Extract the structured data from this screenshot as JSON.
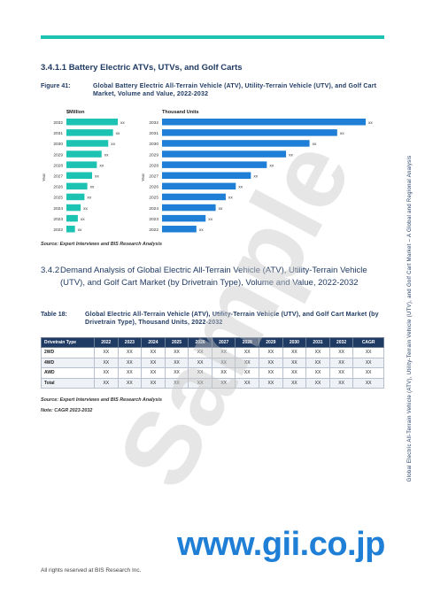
{
  "section": {
    "heading": "3.4.1.1 Battery Electric ATVs, UTVs, and Golf Carts"
  },
  "figure": {
    "label": "Figure 41:",
    "caption": "Global Battery Electric All-Terrain Vehicle (ATV), Utility-Terrain Vehicle (UTV), and Golf Cart Market, Volume and Value, 2022-2032"
  },
  "chart_data": [
    {
      "type": "bar",
      "orientation": "horizontal",
      "title": "$Million",
      "ylabel": "Year",
      "color": "#1cc3b2",
      "categories": [
        "2032",
        "2031",
        "2030",
        "2029",
        "2028",
        "2027",
        "2026",
        "2025",
        "2024",
        "2023",
        "2022"
      ],
      "values": [
        54,
        49,
        44,
        37,
        32,
        27,
        22,
        19,
        15,
        12,
        9
      ],
      "data_labels": [
        "xx",
        "xx",
        "xx",
        "xx",
        "xx",
        "xx",
        "xx",
        "xx",
        "xx",
        "xx",
        "xx"
      ]
    },
    {
      "type": "bar",
      "orientation": "horizontal",
      "title": "Thousand Units",
      "ylabel": "Year",
      "color": "#1f7fd6",
      "categories": [
        "2032",
        "2031",
        "2030",
        "2029",
        "2028",
        "2027",
        "2026",
        "2025",
        "2024",
        "2023",
        "2022"
      ],
      "values": [
        243,
        209,
        176,
        148,
        125,
        106,
        88,
        76,
        64,
        52,
        41
      ],
      "data_labels": [
        "xx",
        "xx",
        "xx",
        "xx",
        "xx",
        "xx",
        "xx",
        "xx",
        "xx",
        "xx",
        "xx"
      ]
    }
  ],
  "source1": "Source: Expert Interviews and BIS Research Analysis",
  "section2": {
    "number": "3.4.2",
    "heading": "Demand Analysis of Global Electric All-Terrain Vehicle (ATV), Utility-Terrain Vehicle (UTV), and Golf Cart Market (by Drivetrain Type), Volume and Value, 2022-2032"
  },
  "table": {
    "label": "Table 18:",
    "caption": "Global Electric All-Terrain Vehicle (ATV), Utility-Terrain Vehicle (UTV), and Golf Cart Market (by Drivetrain Type), Thousand Units, 2022-2032",
    "header_color": "#1f3a63",
    "columns": [
      "Drivetrain Type",
      "2022",
      "2023",
      "2024",
      "2025",
      "2026",
      "2027",
      "2028",
      "2029",
      "2030",
      "2031",
      "2032",
      "CAGR"
    ],
    "rows": [
      [
        "2WD",
        "XX",
        "XX",
        "XX",
        "XX",
        "XX",
        "XX",
        "XX",
        "XX",
        "XX",
        "XX",
        "XX",
        "XX"
      ],
      [
        "4WD",
        "XX",
        "XX",
        "XX",
        "XX",
        "XX",
        "XX",
        "XX",
        "XX",
        "XX",
        "XX",
        "XX",
        "XX"
      ],
      [
        "AWD",
        "XX",
        "XX",
        "XX",
        "XX",
        "XX",
        "XX",
        "XX",
        "XX",
        "XX",
        "XX",
        "XX",
        "XX"
      ],
      [
        "Total",
        "XX",
        "XX",
        "XX",
        "XX",
        "XX",
        "XX",
        "XX",
        "XX",
        "XX",
        "XX",
        "XX",
        "XX"
      ]
    ]
  },
  "source2": "Source: Expert Interviews and BIS Research Analysis",
  "note": "Note: CAGR 2023-2032",
  "footer": "All rights reserved at BIS Research Inc.",
  "side_text": "Global Electric All-Terrain Vehicle (ATV), Utility-Terrain Vehicle (UTV), and Golf Cart Market – A Global and Regional Analysis",
  "watermark": "Sample",
  "url": "www.gii.co.jp",
  "accent_color": "#1cc3b2"
}
